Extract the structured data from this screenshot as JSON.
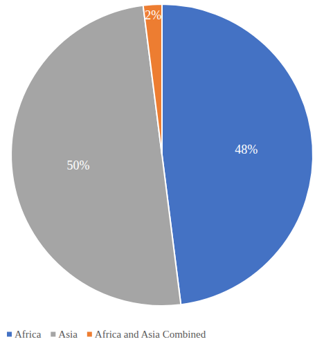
{
  "chart_data": {
    "type": "pie",
    "categories": [
      "Africa",
      "Asia",
      "Africa and Asia Combined"
    ],
    "values": [
      48,
      50,
      2
    ],
    "value_labels": [
      "48%",
      "50%",
      "2%"
    ],
    "colors": [
      "#4472c4",
      "#a5a5a5",
      "#ed7d31"
    ],
    "data_labels": true,
    "legend": "bottom"
  }
}
